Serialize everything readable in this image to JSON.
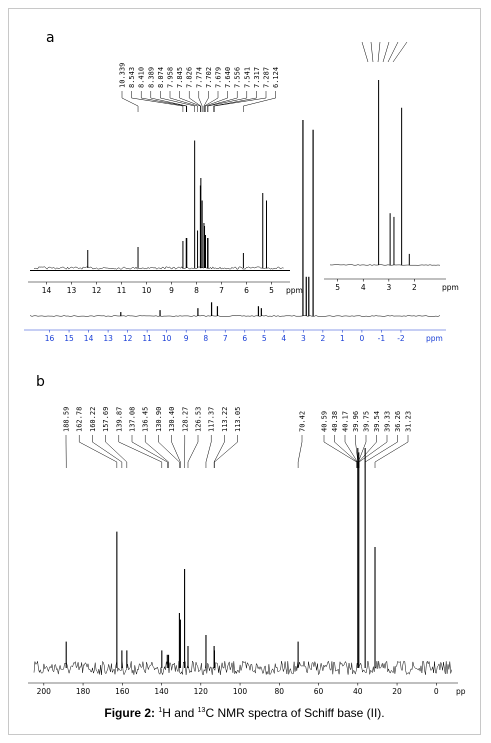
{
  "caption": {
    "prefix": "Figure 2:",
    "sup1": "1",
    "mid1": "H and ",
    "sup2": "13",
    "mid2": "C NMR spectra of Schiff base (II)."
  },
  "chart_data": [
    {
      "panel": "a",
      "type": "line",
      "title": "",
      "xlabel": "ppm",
      "x_range": [
        17,
        -4
      ],
      "x_ticks": [
        16,
        15,
        14,
        13,
        12,
        11,
        10,
        9,
        8,
        7,
        6,
        5,
        4,
        3,
        2,
        1,
        0,
        -1,
        -2
      ],
      "peaks": [
        {
          "x": 12.35,
          "h": 0.02
        },
        {
          "x": 10.339,
          "h": 0.03
        },
        {
          "x": 8.4,
          "h": 0.04
        },
        {
          "x": 7.7,
          "h": 0.07
        },
        {
          "x": 7.4,
          "h": 0.05
        },
        {
          "x": 5.3,
          "h": 0.05
        },
        {
          "x": 5.15,
          "h": 0.04
        },
        {
          "x": 3.02,
          "h": 1.0
        },
        {
          "x": 2.85,
          "h": 0.2
        },
        {
          "x": 2.72,
          "h": 0.2
        },
        {
          "x": 2.5,
          "h": 0.95
        }
      ],
      "inset_main": {
        "xlabel": "ppm",
        "x_range": [
          14.5,
          4.5
        ],
        "x_ticks": [
          14,
          13,
          12,
          11,
          10,
          9,
          8,
          7,
          6,
          5
        ],
        "peak_labels": [
          "10.339",
          "8.543",
          "8.410",
          "8.389",
          "8.074",
          "7.958",
          "7.845",
          "7.826",
          "7.774",
          "7.702",
          "7.679",
          "7.640",
          "7.556",
          "7.541",
          "7.317",
          "7.287",
          "6.124"
        ],
        "peaks": [
          {
            "x": 12.35,
            "h": 0.12
          },
          {
            "x": 10.339,
            "h": 0.14
          },
          {
            "x": 8.543,
            "h": 0.18
          },
          {
            "x": 8.41,
            "h": 0.2
          },
          {
            "x": 8.389,
            "h": 0.2
          },
          {
            "x": 8.074,
            "h": 0.85
          },
          {
            "x": 7.958,
            "h": 0.25
          },
          {
            "x": 7.845,
            "h": 0.55
          },
          {
            "x": 7.826,
            "h": 0.6
          },
          {
            "x": 7.774,
            "h": 0.45
          },
          {
            "x": 7.702,
            "h": 0.3
          },
          {
            "x": 7.679,
            "h": 0.28
          },
          {
            "x": 7.64,
            "h": 0.22
          },
          {
            "x": 7.556,
            "h": 0.2
          },
          {
            "x": 7.541,
            "h": 0.2
          },
          {
            "x": 6.124,
            "h": 0.1
          },
          {
            "x": 5.35,
            "h": 0.5
          },
          {
            "x": 5.2,
            "h": 0.45
          }
        ]
      },
      "inset_right": {
        "xlabel": "ppm",
        "x_range": [
          5.3,
          1.0
        ],
        "x_ticks": [
          5,
          4,
          3,
          2
        ],
        "peaks": [
          {
            "x": 3.4,
            "h": 1.0
          },
          {
            "x": 2.95,
            "h": 0.28
          },
          {
            "x": 2.8,
            "h": 0.26
          },
          {
            "x": 2.5,
            "h": 0.85
          },
          {
            "x": 2.2,
            "h": 0.06
          }
        ]
      }
    },
    {
      "panel": "b",
      "type": "line",
      "title": "",
      "xlabel": "pp",
      "x_range": [
        205,
        -8
      ],
      "x_ticks": [
        200,
        180,
        160,
        140,
        120,
        100,
        80,
        60,
        40,
        20,
        0
      ],
      "peak_labels": [
        "188.59",
        "162.78",
        "160.22",
        "157.69",
        "139.87",
        "137.08",
        "136.45",
        "130.90",
        "130.40",
        "128.27",
        "126.53",
        "117.37",
        "113.22",
        "113.05",
        "70.42",
        "40.59",
        "40.38",
        "40.17",
        "39.96",
        "39.75",
        "39.54",
        "39.33",
        "36.26",
        "31.23"
      ],
      "peaks": [
        {
          "x": 188.59,
          "h": 0.12
        },
        {
          "x": 162.78,
          "h": 0.62
        },
        {
          "x": 160.22,
          "h": 0.08
        },
        {
          "x": 157.69,
          "h": 0.08
        },
        {
          "x": 139.87,
          "h": 0.08
        },
        {
          "x": 137.08,
          "h": 0.06
        },
        {
          "x": 136.45,
          "h": 0.06
        },
        {
          "x": 130.9,
          "h": 0.25
        },
        {
          "x": 130.4,
          "h": 0.22
        },
        {
          "x": 128.27,
          "h": 0.45
        },
        {
          "x": 126.53,
          "h": 0.1
        },
        {
          "x": 117.37,
          "h": 0.15
        },
        {
          "x": 113.22,
          "h": 0.1
        },
        {
          "x": 113.05,
          "h": 0.08
        },
        {
          "x": 70.42,
          "h": 0.12
        },
        {
          "x": 40.0,
          "h": 1.0
        },
        {
          "x": 39.5,
          "h": 0.98
        },
        {
          "x": 36.26,
          "h": 1.0
        },
        {
          "x": 31.23,
          "h": 0.55
        }
      ]
    }
  ]
}
